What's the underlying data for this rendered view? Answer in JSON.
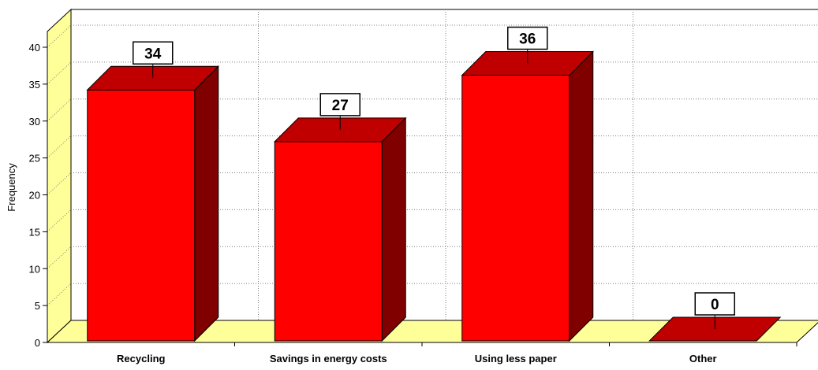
{
  "chart_data": {
    "type": "bar",
    "style": "3d",
    "categories": [
      "Recycling",
      "Savings in energy costs",
      "Using less paper",
      "Other"
    ],
    "values": [
      34,
      27,
      36,
      0
    ],
    "data_labels": [
      "34",
      "27",
      "36",
      "0"
    ],
    "title": "",
    "xlabel": "",
    "ylabel": "Frequency",
    "ylim": [
      0,
      40
    ],
    "yticks": [
      "0",
      "5",
      "10",
      "15",
      "20",
      "25",
      "30",
      "35",
      "40"
    ],
    "grid": true,
    "legend": "none",
    "colors": {
      "bar_front": "#ff0000",
      "bar_top": "#c00000",
      "bar_side": "#800000",
      "floor": "#ffff99",
      "back_wall": "#ffffff",
      "side_wall": "#ffff99"
    }
  }
}
